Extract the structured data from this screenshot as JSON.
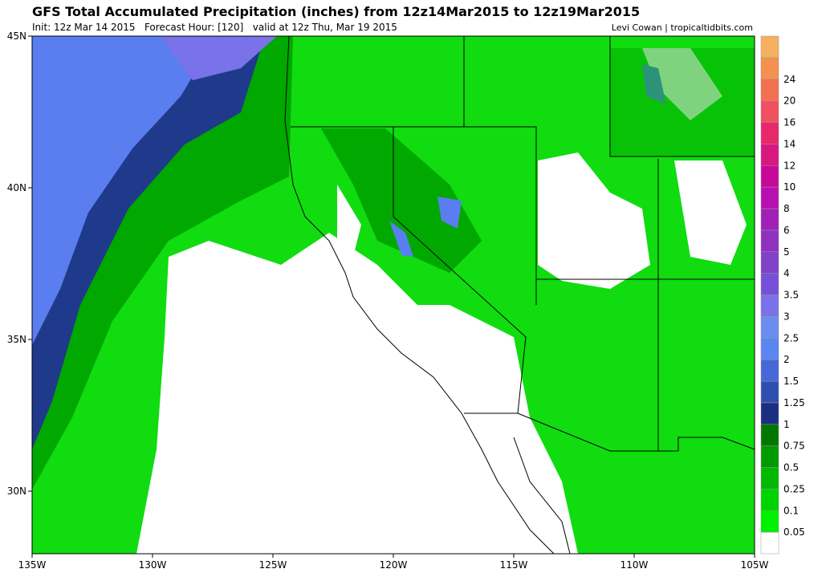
{
  "header": {
    "title": "GFS Total Accumulated Precipitation (inches) from 12z14Mar2015 to 12z19Mar2015",
    "subtitle": "Init: 12z Mar 14 2015   Forecast Hour: [120]   valid at 12z Thu, Mar 19 2015",
    "credit": "Levi Cowan | tropicaltidbits.com"
  },
  "map": {
    "lon_labels": [
      "135W",
      "130W",
      "125W",
      "120W",
      "115W",
      "110W",
      "105W"
    ],
    "lat_labels": [
      "45N",
      "40N",
      "35N",
      "30N"
    ]
  },
  "colorbar": {
    "levels": [
      "0.05",
      "0.1",
      "0.25",
      "0.5",
      "0.75",
      "1",
      "1.25",
      "1.5",
      "2",
      "2.5",
      "3",
      "3.5",
      "4",
      "5",
      "6",
      "8",
      "10",
      "12",
      "14",
      "16",
      "20",
      "24"
    ],
    "colors": [
      "#ffffff",
      "#00f000",
      "#00d400",
      "#00b800",
      "#009a00",
      "#007800",
      "#1a2f80",
      "#2e4fb0",
      "#4668d8",
      "#5a86f0",
      "#6a8cf0",
      "#7a72e8",
      "#7650d8",
      "#8040c8",
      "#9030c0",
      "#a020b8",
      "#b810b0",
      "#c80898",
      "#d81880",
      "#e82868",
      "#f05060",
      "#f27050",
      "#f49050",
      "#f5b060"
    ]
  }
}
